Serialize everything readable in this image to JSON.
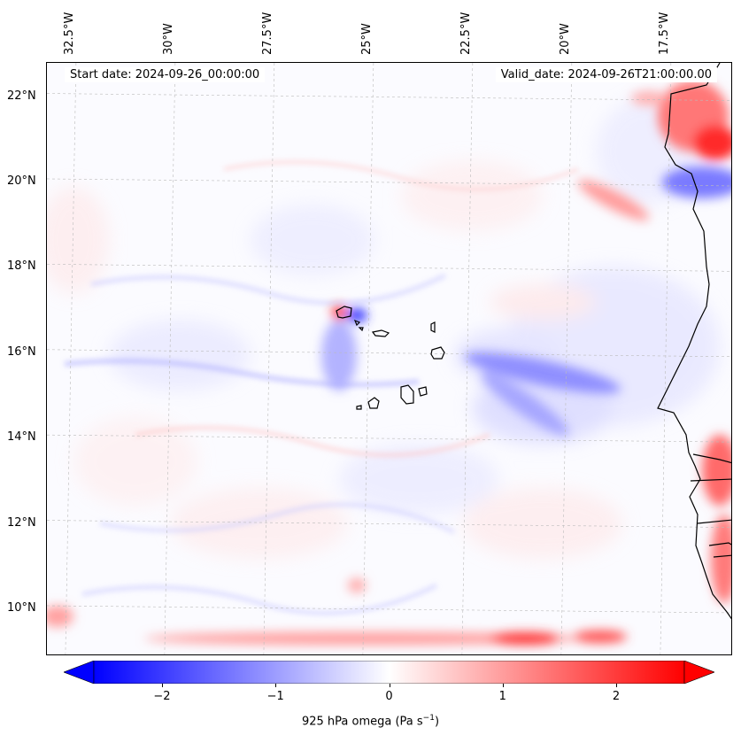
{
  "header": {
    "start_date": "Start date: 2024-09-26_00:00:00",
    "valid_date": "Valid_date: 2024-09-26T21:00:00.00"
  },
  "map": {
    "variable": "925 hPa omega",
    "extent_lon": [
      -33.1,
      -15.8
    ],
    "extent_lat": [
      8.9,
      22.8
    ],
    "gridlines": true,
    "lon_ticks": [
      {
        "value": -32.5,
        "label": "32.5°W"
      },
      {
        "value": -30.0,
        "label": "30°W"
      },
      {
        "value": -27.5,
        "label": "27.5°W"
      },
      {
        "value": -25.0,
        "label": "25°W"
      },
      {
        "value": -22.5,
        "label": "22.5°W"
      },
      {
        "value": -20.0,
        "label": "20°W"
      },
      {
        "value": -17.5,
        "label": "17.5°W"
      }
    ],
    "lat_ticks": [
      {
        "value": 22,
        "label": "22°N"
      },
      {
        "value": 20,
        "label": "20°N"
      },
      {
        "value": 18,
        "label": "18°N"
      },
      {
        "value": 16,
        "label": "16°N"
      },
      {
        "value": 14,
        "label": "14°N"
      },
      {
        "value": 12,
        "label": "12°N"
      },
      {
        "value": 10,
        "label": "10°N"
      }
    ],
    "colors": {
      "negative": "#0000ff",
      "zero": "#ffffff",
      "positive": "#ff0000",
      "coast": "#000000"
    }
  },
  "colorbar": {
    "label_main": "925 hPa omega (Pa s",
    "label_exp": "−1",
    "label_close": ")",
    "range": [
      -2.6,
      2.6
    ],
    "extend": "both",
    "ticks": [
      {
        "value": -2,
        "label": "−2"
      },
      {
        "value": -1,
        "label": "−1"
      },
      {
        "value": 0,
        "label": "0"
      },
      {
        "value": 1,
        "label": "1"
      },
      {
        "value": 2,
        "label": "2"
      }
    ]
  }
}
